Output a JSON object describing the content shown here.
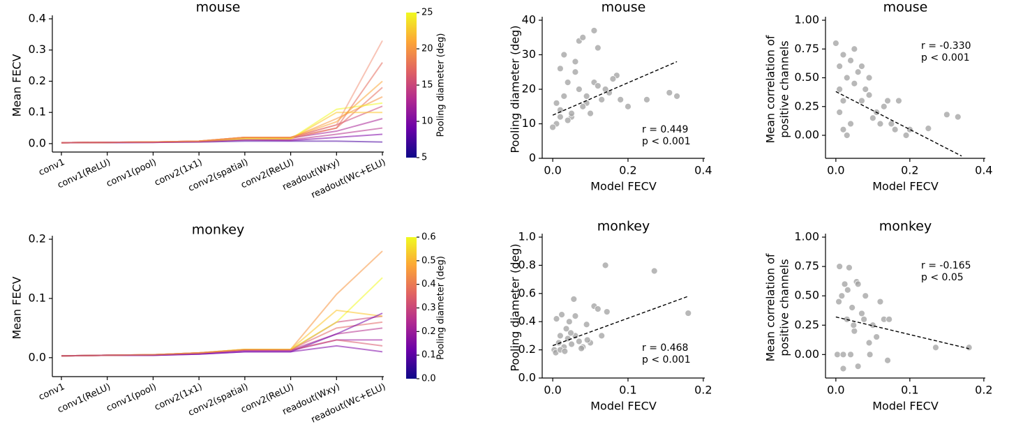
{
  "chart_data": [
    {
      "type": "line",
      "title": "mouse",
      "ylabel": "Mean FECV",
      "categories": [
        "conv1",
        "conv1(ReLU)",
        "conv1(pool)",
        "conv2(1x1)",
        "conv2(spatial)",
        "conv2(ReLU)",
        "readout(Wxy)",
        "readout(Wc+ELU)"
      ],
      "ylim": [
        -0.027,
        0.4
      ],
      "yticks": [
        {
          "value": 0,
          "label": "0.0"
        },
        0.1,
        0.2,
        0.3,
        0.4
      ],
      "colorbar": {
        "label": "Pooling diameter (deg)",
        "lim": [
          5,
          25
        ],
        "ticks": [
          5,
          10,
          15,
          20,
          25
        ]
      },
      "series": [
        {
          "color": "#4b03a1",
          "values": [
            0.003,
            0.003,
            0.004,
            0.005,
            0.008,
            0.008,
            0.008,
            0.005
          ]
        },
        {
          "color": "#7e03a8",
          "values": [
            0.003,
            0.004,
            0.004,
            0.006,
            0.012,
            0.01,
            0.02,
            0.03
          ]
        },
        {
          "color": "#a82296",
          "values": [
            0.003,
            0.004,
            0.004,
            0.007,
            0.02,
            0.018,
            0.04,
            0.08
          ]
        },
        {
          "color": "#cc4778",
          "values": [
            0.003,
            0.004,
            0.005,
            0.008,
            0.02,
            0.02,
            0.06,
            0.12
          ]
        },
        {
          "color": "#e66c5c",
          "values": [
            0.003,
            0.004,
            0.005,
            0.008,
            0.018,
            0.016,
            0.05,
            0.18
          ]
        },
        {
          "color": "#f89540",
          "values": [
            0.003,
            0.004,
            0.005,
            0.008,
            0.02,
            0.018,
            0.08,
            0.15
          ]
        },
        {
          "color": "#fdc527",
          "values": [
            0.003,
            0.004,
            0.005,
            0.007,
            0.015,
            0.015,
            0.1,
            0.1
          ]
        },
        {
          "color": "#f0f921",
          "values": [
            0.003,
            0.004,
            0.005,
            0.007,
            0.015,
            0.015,
            0.11,
            0.13
          ]
        },
        {
          "color": "#f3937a",
          "values": [
            0.003,
            0.004,
            0.005,
            0.008,
            0.02,
            0.02,
            0.06,
            0.33
          ]
        },
        {
          "color": "#e66c5c",
          "values": [
            0.003,
            0.004,
            0.005,
            0.008,
            0.02,
            0.02,
            0.05,
            0.26
          ]
        },
        {
          "color": "#fca636",
          "values": [
            0.003,
            0.004,
            0.005,
            0.008,
            0.02,
            0.02,
            0.07,
            0.2
          ]
        },
        {
          "color": "#b52f8c",
          "values": [
            0.003,
            0.004,
            0.004,
            0.006,
            0.012,
            0.012,
            0.03,
            0.05
          ]
        }
      ]
    },
    {
      "type": "scatter",
      "title": "mouse",
      "xlabel": "Model FECV",
      "ylabel": "Pooling diameter (deg)",
      "xlim": [
        -0.028,
        0.404
      ],
      "xticks": [
        {
          "value": 0,
          "label": "0.0"
        },
        0.2,
        0.4
      ],
      "ylim": [
        0,
        40
      ],
      "yticks": [
        0,
        10,
        20,
        30,
        40
      ],
      "color": "#a0a0a0",
      "annotations": [
        "r = 0.449",
        "p < 0.001"
      ],
      "x": [
        0.01,
        0.02,
        0.03,
        0.05,
        0.07,
        0.09,
        0.11,
        0.13,
        0.15,
        0.17,
        0.02,
        0.04,
        0.06,
        0.08,
        0.1,
        0.12,
        0.01,
        0.03,
        0.05,
        0.07,
        0.09,
        0.14,
        0.16,
        0.18,
        0.25,
        0.31,
        0.33,
        0.11,
        0.06,
        0.04,
        0.0,
        0.02,
        0.08,
        0.12,
        0.2
      ],
      "values": [
        10,
        14,
        18,
        12,
        20,
        16,
        22,
        17,
        19,
        24,
        26,
        11,
        25,
        15,
        13,
        21,
        16,
        30,
        13,
        34,
        18,
        20,
        23,
        17,
        17,
        19,
        18,
        37,
        28,
        22,
        9,
        12,
        35,
        32,
        15
      ],
      "fit": {
        "x": [
          0,
          0.33
        ],
        "values": [
          12.5,
          28
        ]
      }
    },
    {
      "type": "scatter",
      "title": "mouse",
      "xlabel": "Model FECV",
      "ylabel": [
        "Mean correlation of",
        "positive channels"
      ],
      "xlim": [
        -0.028,
        0.404
      ],
      "xticks": [
        {
          "value": 0,
          "label": "0.0"
        },
        0.2,
        0.4
      ],
      "ylim": [
        -0.2,
        1.0
      ],
      "yticks": [
        {
          "value": 0,
          "label": "0.00"
        },
        0.25,
        {
          "value": 0.5,
          "label": "0.50"
        },
        0.75,
        {
          "value": 1,
          "label": "1.00"
        }
      ],
      "color": "#a0a0a0",
      "annotations": [
        "r = -0.330",
        "p < 0.001"
      ],
      "x": [
        0.0,
        0.01,
        0.02,
        0.03,
        0.05,
        0.07,
        0.09,
        0.11,
        0.13,
        0.15,
        0.17,
        0.19,
        0.2,
        0.25,
        0.3,
        0.33,
        0.01,
        0.02,
        0.04,
        0.06,
        0.08,
        0.1,
        0.12,
        0.14,
        0.16,
        0.03,
        0.05,
        0.07,
        0.09,
        0.01,
        0.02,
        0.04
      ],
      "values": [
        0.8,
        0.6,
        0.7,
        0.5,
        0.45,
        0.3,
        0.35,
        0.2,
        0.25,
        0.1,
        0.3,
        0.0,
        0.05,
        0.06,
        0.18,
        0.16,
        0.2,
        0.05,
        0.65,
        0.55,
        0.4,
        0.15,
        0.1,
        0.3,
        0.05,
        0.0,
        0.75,
        0.6,
        0.5,
        0.4,
        0.3,
        0.1
      ],
      "fit": {
        "x": [
          0,
          0.34
        ],
        "values": [
          0.38,
          -0.18
        ]
      }
    },
    {
      "type": "line",
      "title": "monkey",
      "ylabel": "Mean FECV",
      "categories": [
        "conv1",
        "conv1(ReLU)",
        "conv1(pool)",
        "conv2(1x1)",
        "conv2(spatial)",
        "conv2(ReLU)",
        "readout(Wxy)",
        "readout(Wc+ELU)"
      ],
      "ylim": [
        -0.032,
        0.2
      ],
      "yticks": [
        {
          "value": 0,
          "label": "0.0"
        },
        0.1,
        0.2
      ],
      "colorbar": {
        "label": "Pooling diameter (deg)",
        "lim": [
          0,
          0.6
        ],
        "ticks": [
          {
            "value": 0,
            "label": "0.0"
          },
          0.1,
          0.2,
          0.3,
          0.4,
          0.5,
          0.6
        ]
      },
      "series": [
        {
          "color": "#7e03a8",
          "values": [
            0.003,
            0.004,
            0.004,
            0.006,
            0.01,
            0.01,
            0.02,
            0.01
          ]
        },
        {
          "color": "#9c179e",
          "values": [
            0.003,
            0.004,
            0.004,
            0.007,
            0.012,
            0.012,
            0.03,
            0.03
          ]
        },
        {
          "color": "#b52f8c",
          "values": [
            0.003,
            0.004,
            0.005,
            0.008,
            0.013,
            0.013,
            0.04,
            0.05
          ]
        },
        {
          "color": "#cc4778",
          "values": [
            0.003,
            0.004,
            0.005,
            0.008,
            0.013,
            0.013,
            0.06,
            0.07
          ]
        },
        {
          "color": "#e16462",
          "values": [
            0.003,
            0.004,
            0.005,
            0.008,
            0.014,
            0.014,
            0.05,
            0.06
          ]
        },
        {
          "color": "#f89540",
          "values": [
            0.003,
            0.004,
            0.005,
            0.008,
            0.014,
            0.014,
            0.107,
            0.18
          ]
        },
        {
          "color": "#f0f921",
          "values": [
            0.003,
            0.004,
            0.005,
            0.008,
            0.014,
            0.014,
            0.06,
            0.135
          ]
        },
        {
          "color": "#fdc527",
          "values": [
            0.003,
            0.004,
            0.005,
            0.008,
            0.014,
            0.014,
            0.08,
            0.07
          ]
        },
        {
          "color": "#7201a8",
          "values": [
            0.003,
            0.004,
            0.004,
            0.006,
            0.01,
            0.01,
            0.04,
            0.075
          ]
        },
        {
          "color": "#d8576b",
          "values": [
            0.003,
            0.004,
            0.005,
            0.008,
            0.013,
            0.013,
            0.03,
            0.02
          ]
        }
      ]
    },
    {
      "type": "scatter",
      "title": "monkey",
      "xlabel": "Model FECV",
      "ylabel": "Pooling diameter (deg)",
      "xlim": [
        -0.014,
        0.202
      ],
      "xticks": [
        {
          "value": 0,
          "label": "0.0"
        },
        0.1,
        0.2
      ],
      "ylim": [
        0,
        1
      ],
      "yticks": [
        {
          "value": 0,
          "label": "0.0"
        },
        0.2,
        0.4,
        0.6,
        0.8,
        {
          "value": 1,
          "label": "1.0"
        }
      ],
      "color": "#a0a0a0",
      "annotations": [
        "r = 0.468",
        "p < 0.001"
      ],
      "x": [
        0.002,
        0.005,
        0.008,
        0.01,
        0.012,
        0.015,
        0.018,
        0.02,
        0.022,
        0.025,
        0.028,
        0.03,
        0.035,
        0.04,
        0.045,
        0.05,
        0.055,
        0.06,
        0.065,
        0.07,
        0.072,
        0.135,
        0.18,
        0.004,
        0.01,
        0.016,
        0.024,
        0.03,
        0.038,
        0.046
      ],
      "values": [
        0.2,
        0.42,
        0.25,
        0.3,
        0.45,
        0.22,
        0.35,
        0.28,
        0.4,
        0.24,
        0.56,
        0.3,
        0.26,
        0.22,
        0.38,
        0.25,
        0.51,
        0.49,
        0.3,
        0.8,
        0.47,
        0.76,
        0.46,
        0.18,
        0.2,
        0.19,
        0.32,
        0.44,
        0.21,
        0.27
      ],
      "fit": {
        "x": [
          0,
          0.18
        ],
        "values": [
          0.23,
          0.58
        ]
      }
    },
    {
      "type": "scatter",
      "title": "monkey",
      "xlabel": "Model FECV",
      "ylabel": [
        "Mean correlation of",
        "positive channels"
      ],
      "xlim": [
        -0.014,
        0.202
      ],
      "xticks": [
        {
          "value": 0,
          "label": "0.0"
        },
        0.1,
        0.2
      ],
      "ylim": [
        -0.2,
        1.0
      ],
      "yticks": [
        {
          "value": 0,
          "label": "0.00"
        },
        0.25,
        {
          "value": 0.5,
          "label": "0.50"
        },
        0.75,
        {
          "value": 1,
          "label": "1.00"
        }
      ],
      "color": "#a0a0a0",
      "annotations": [
        "r = -0.165",
        "p < 0.05"
      ],
      "x": [
        0.002,
        0.005,
        0.008,
        0.01,
        0.012,
        0.015,
        0.018,
        0.02,
        0.022,
        0.025,
        0.028,
        0.03,
        0.035,
        0.04,
        0.045,
        0.05,
        0.055,
        0.06,
        0.065,
        0.07,
        0.072,
        0.135,
        0.18,
        0.004,
        0.01,
        0.016,
        0.024,
        0.03,
        0.038,
        0.046
      ],
      "values": [
        0.0,
        0.75,
        0.5,
        -0.12,
        0.6,
        0.3,
        0.74,
        0.0,
        0.4,
        0.2,
        0.62,
        -0.1,
        0.35,
        0.5,
        0.1,
        0.25,
        0.15,
        0.45,
        0.3,
        -0.05,
        0.3,
        0.06,
        0.06,
        0.45,
        0.0,
        0.55,
        0.25,
        0.6,
        0.3,
        0.0
      ],
      "fit": {
        "x": [
          0,
          0.18
        ],
        "values": [
          0.32,
          0.05
        ]
      }
    }
  ]
}
